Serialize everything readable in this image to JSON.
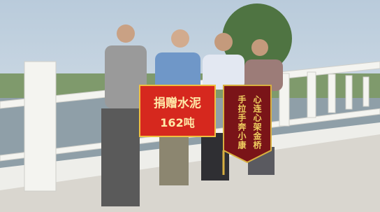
{
  "banner": {
    "lines": [
      "捐赠水泥",
      "162吨"
    ]
  },
  "pennant": {
    "lines": [
      "心连心架金桥",
      "手拉手奔小康"
    ]
  }
}
